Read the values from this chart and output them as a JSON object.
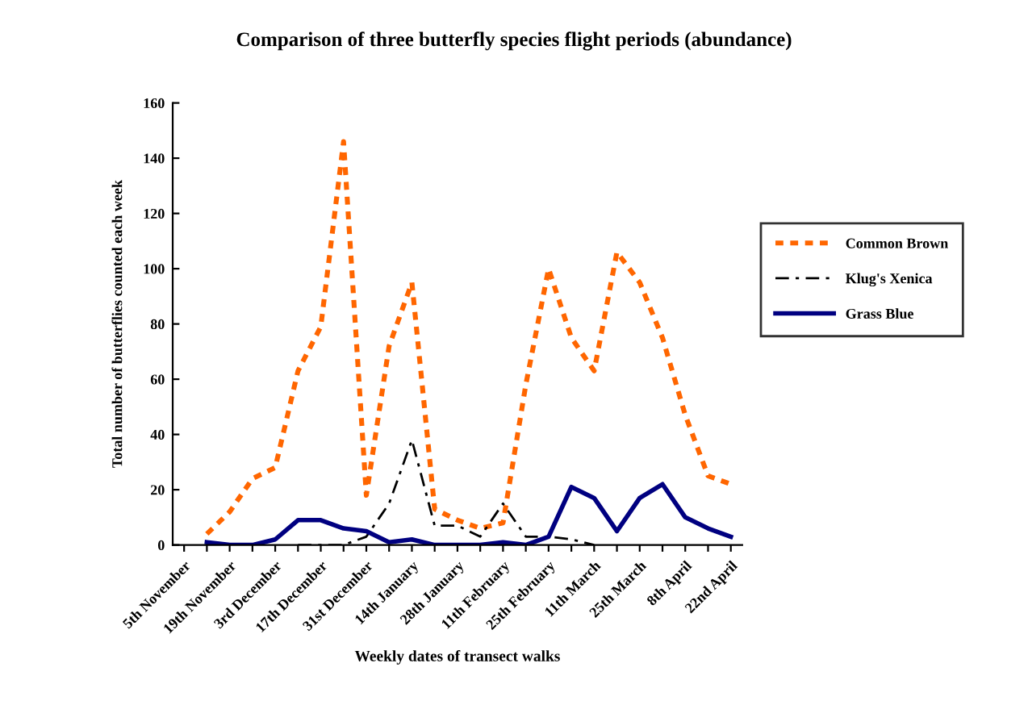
{
  "chart_data": {
    "type": "line",
    "title": "Comparison of three butterfly species flight periods (abundance)",
    "xlabel": "Weekly dates of transect walks",
    "ylabel": "Total number of butterflies counted each week",
    "categories": [
      "5th November",
      null,
      "19th November",
      null,
      "3rd December",
      null,
      "17th December",
      null,
      "31st December",
      null,
      "14th January",
      null,
      "28th January",
      null,
      "11th February",
      null,
      "25th February",
      null,
      "11th March",
      null,
      "25th March",
      null,
      "8th April",
      null,
      "22nd April"
    ],
    "ylim": [
      0,
      160
    ],
    "yticks": [
      0,
      20,
      40,
      60,
      80,
      100,
      120,
      140,
      160
    ],
    "grid": false,
    "legend": "right",
    "marker": "none",
    "series": [
      {
        "name": "Common Brown",
        "color": "#ff6600",
        "line_style": "dashed",
        "values": [
          null,
          4,
          12,
          24,
          28,
          63,
          79,
          146,
          18,
          72,
          95,
          13,
          9,
          6,
          8,
          58,
          100,
          75,
          63,
          106,
          95,
          75,
          47,
          25,
          22
        ]
      },
      {
        "name": "Klug's Xenica",
        "color": "#000000",
        "line_style": "dashdot",
        "values": [
          null,
          null,
          null,
          null,
          null,
          0,
          0,
          0,
          3,
          15,
          38,
          7,
          7,
          3,
          15,
          3,
          3,
          2,
          0,
          null,
          null,
          null,
          null,
          null,
          null
        ]
      },
      {
        "name": "Grass Blue",
        "color": "#000080",
        "line_style": "solid",
        "values": [
          null,
          1,
          0,
          0,
          2,
          9,
          9,
          6,
          5,
          1,
          2,
          0,
          0,
          0,
          1,
          0,
          3,
          21,
          17,
          5,
          17,
          22,
          10,
          6,
          3
        ]
      }
    ]
  }
}
